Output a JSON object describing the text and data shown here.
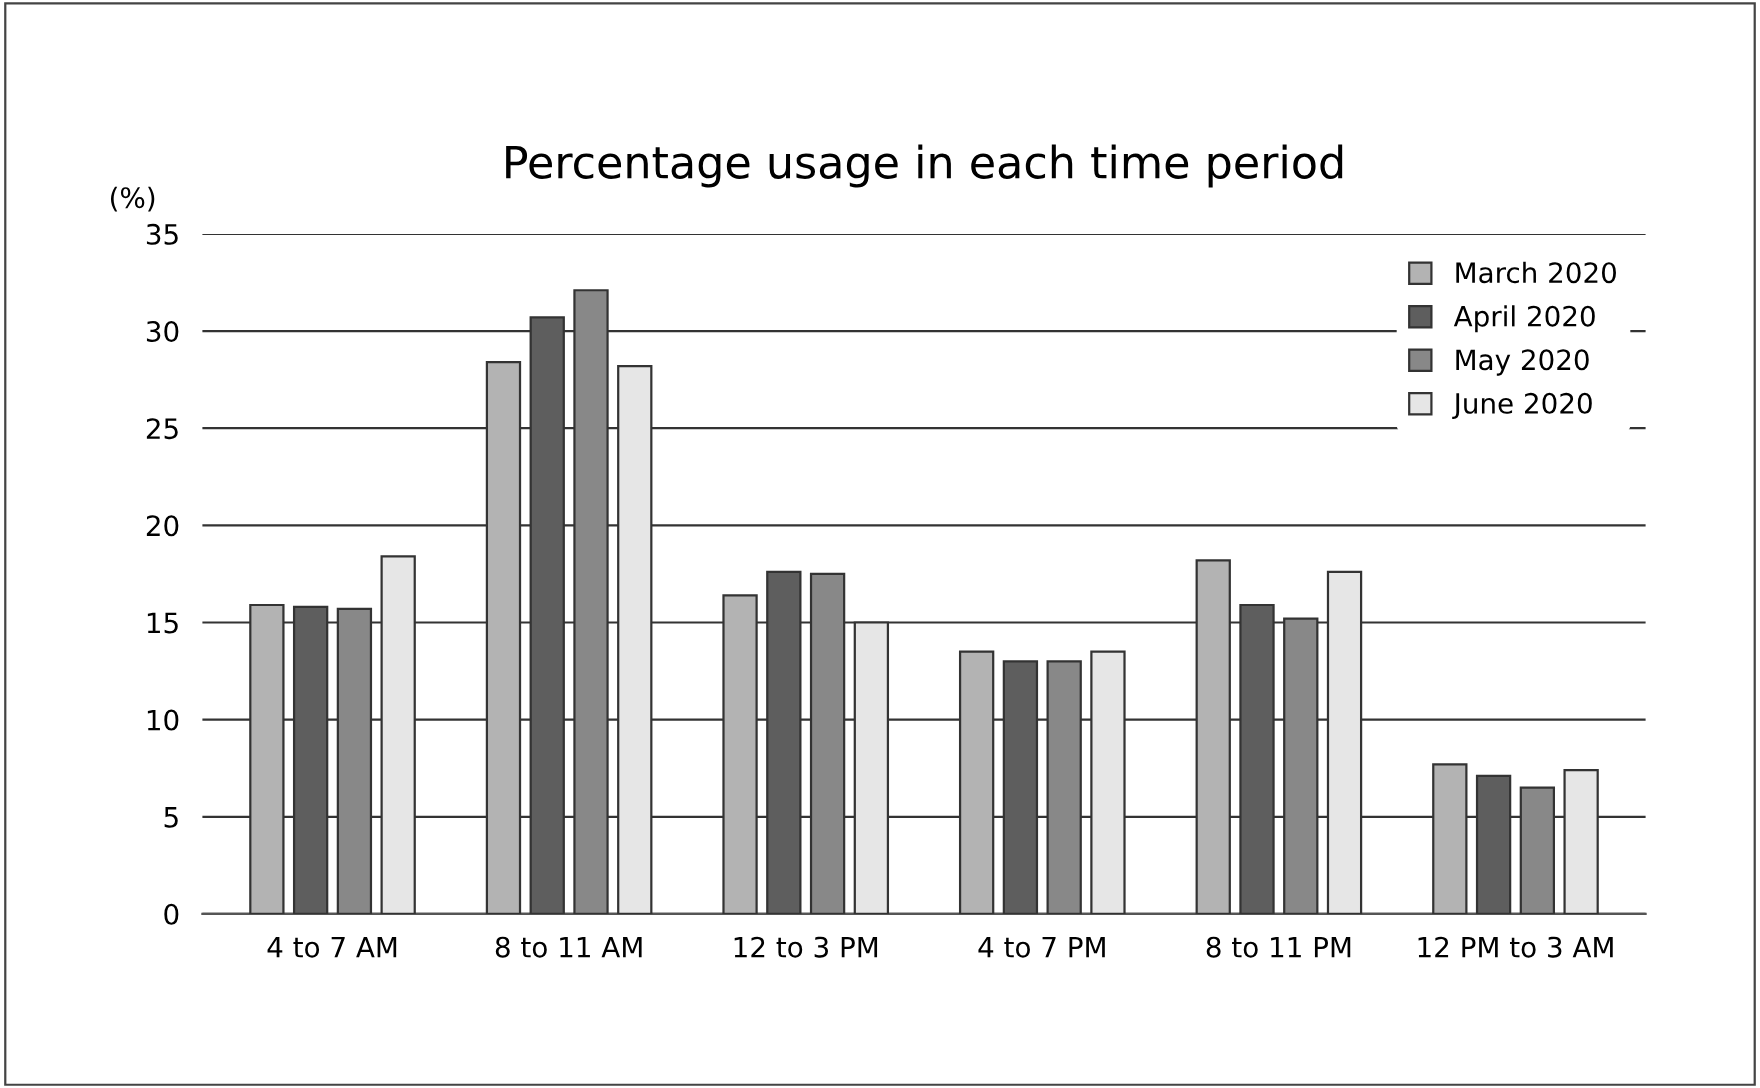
{
  "chart_data": {
    "type": "bar",
    "title": "Percentage usage in each time period",
    "ylabel": "(%)",
    "categories": [
      "4 to 7 AM",
      "8 to 11 AM",
      "12 to 3 PM",
      "4 to 7 PM",
      "8 to 11 PM",
      "12 PM to 3 AM"
    ],
    "series": [
      {
        "name": "March 2020",
        "color": "#b3b3b3",
        "values": [
          15.9,
          28.4,
          16.4,
          13.5,
          18.2,
          7.7
        ]
      },
      {
        "name": "April 2020",
        "color": "#5e5e5e",
        "values": [
          15.8,
          30.7,
          17.6,
          13.0,
          15.9,
          7.1
        ]
      },
      {
        "name": "May 2020",
        "color": "#888888",
        "values": [
          15.7,
          32.1,
          17.5,
          13.0,
          15.2,
          6.5
        ]
      },
      {
        "name": "June 2020",
        "color": "#e6e6e6",
        "values": [
          18.4,
          28.2,
          15.0,
          13.5,
          17.6,
          7.4
        ]
      }
    ],
    "ylim": [
      0,
      35
    ],
    "yticks": [
      0,
      5,
      10,
      15,
      20,
      25,
      30,
      35
    ],
    "grid": "y",
    "legend": "top right"
  }
}
